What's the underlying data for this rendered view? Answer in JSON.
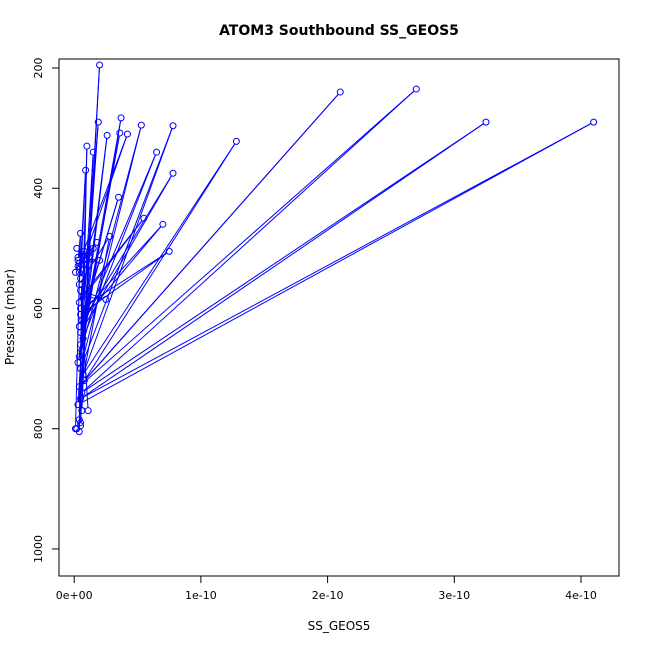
{
  "chart_data": {
    "type": "line",
    "title": "ATOM3 Southbound SS_GEOS5",
    "xlabel": "SS_GEOS5",
    "ylabel": "Pressure (mbar)",
    "xlim": [
      -1.2e-11,
      4.3e-10
    ],
    "ylim": [
      1045,
      185
    ],
    "y_reversed": true,
    "x_ticks": [
      0,
      1e-10,
      2e-10,
      3e-10,
      4e-10
    ],
    "x_tick_labels": [
      "0e+00",
      "1e-10",
      "2e-10",
      "3e-10",
      "4e-10"
    ],
    "y_ticks": [
      200,
      400,
      600,
      800,
      1000
    ],
    "y_tick_labels": [
      "200",
      "400",
      "600",
      "800",
      "1000"
    ],
    "grid": false,
    "legend": "none",
    "series": [
      {
        "style": "lines-and-open-circles",
        "color": "#0000ff",
        "points": [
          [
            2e-12,
            800
          ],
          [
            5e-12,
            790
          ],
          [
            2e-11,
            195
          ],
          [
            4e-12,
            785
          ],
          [
            1e-11,
            330
          ],
          [
            6e-12,
            770
          ],
          [
            1.5e-11,
            340
          ],
          [
            3e-12,
            760
          ],
          [
            4.1e-10,
            290
          ],
          [
            5e-12,
            750
          ],
          [
            3.25e-10,
            290
          ],
          [
            6e-12,
            740
          ],
          [
            2.7e-10,
            235
          ],
          [
            4e-12,
            730
          ],
          [
            2.1e-10,
            240
          ],
          [
            8e-12,
            720
          ],
          [
            1.28e-10,
            322
          ],
          [
            7e-12,
            710
          ],
          [
            7.8e-11,
            296
          ],
          [
            5e-12,
            700
          ],
          [
            5.3e-11,
            295
          ],
          [
            3e-12,
            690
          ],
          [
            3.6e-11,
            308
          ],
          [
            4e-12,
            680
          ],
          [
            2.6e-11,
            312
          ],
          [
            6e-12,
            670
          ],
          [
            3.7e-11,
            283
          ],
          [
            5e-12,
            660
          ],
          [
            1.9e-11,
            290
          ],
          [
            7e-12,
            650
          ],
          [
            6.5e-11,
            340
          ],
          [
            5e-12,
            640
          ],
          [
            7.8e-11,
            375
          ],
          [
            4e-12,
            630
          ],
          [
            3.5e-11,
            415
          ],
          [
            6e-12,
            620
          ],
          [
            7e-11,
            460
          ],
          [
            5e-12,
            610
          ],
          [
            7.5e-11,
            505
          ],
          [
            5e-12,
            600
          ],
          [
            1.2e-11,
            515
          ],
          [
            4e-12,
            590
          ],
          [
            5.5e-11,
            450
          ],
          [
            6e-12,
            580
          ],
          [
            2.5e-11,
            585
          ],
          [
            5e-12,
            570
          ],
          [
            1.1e-11,
            770
          ],
          [
            3e-12,
            760
          ],
          [
            2.8e-11,
            480
          ],
          [
            4e-12,
            560
          ],
          [
            9e-12,
            370
          ],
          [
            5e-12,
            550
          ],
          [
            1.5e-11,
            500
          ],
          [
            4e-12,
            540
          ],
          [
            4.2e-11,
            310
          ],
          [
            3e-12,
            530
          ],
          [
            1.8e-11,
            490
          ],
          [
            4e-12,
            525
          ],
          [
            2e-11,
            520
          ],
          [
            3e-12,
            515
          ],
          [
            6e-12,
            510
          ],
          [
            2e-12,
            500
          ],
          [
            8e-12,
            505
          ],
          [
            1e-12,
            540
          ],
          [
            3e-12,
            520
          ],
          [
            5e-12,
            475
          ],
          [
            1e-12,
            800
          ],
          [
            4e-12,
            805
          ],
          [
            6e-12,
            560
          ],
          [
            5e-12,
            795
          ]
        ]
      }
    ]
  }
}
